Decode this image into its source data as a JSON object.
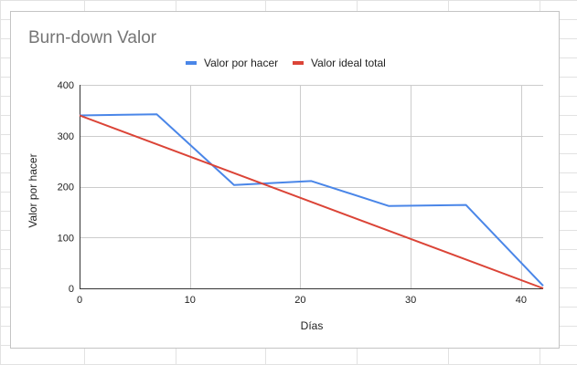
{
  "chart_data": {
    "type": "line",
    "title": "Burn-down Valor",
    "xlabel": "Días",
    "ylabel": "Valor por hacer",
    "xlim": [
      0,
      42
    ],
    "ylim": [
      0,
      400
    ],
    "x_ticks": [
      "0",
      "10",
      "20",
      "30",
      "40"
    ],
    "y_ticks": [
      "0",
      "100",
      "200",
      "300",
      "400"
    ],
    "grid": true,
    "legend_position": "top",
    "series": [
      {
        "name": "Valor por hacer",
        "color": "#4a86e8",
        "x": [
          0,
          7,
          14,
          21,
          28,
          35,
          42
        ],
        "values": [
          340,
          342,
          203,
          211,
          162,
          164,
          5
        ]
      },
      {
        "name": "Valor ideal total",
        "color": "#db4437",
        "x": [
          0,
          42
        ],
        "values": [
          340,
          0
        ]
      }
    ]
  }
}
